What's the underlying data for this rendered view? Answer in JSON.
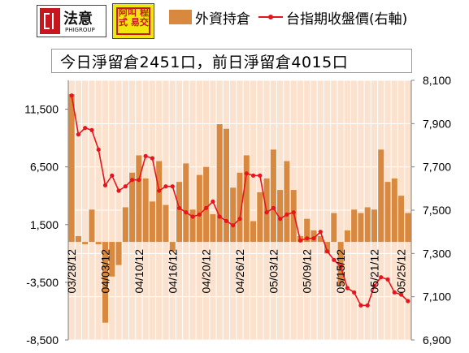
{
  "logos": {
    "primary": {
      "name": "法意",
      "sub": "PHIGROUP"
    },
    "secondary": {
      "text": "阿叫 程式 易交"
    }
  },
  "banner": {
    "text": "今日淨留倉2451口，前日淨留倉4015口"
  },
  "chart_data": {
    "type": "bar+line",
    "legend": {
      "bar_label": "外資持倉",
      "line_label": "台指期收盤價(右軸)",
      "placement": "top"
    },
    "colors": {
      "bar": "#d9893f",
      "line": "#e8141c",
      "plot_bg": "#fbe2cf",
      "grid": "#ffffff"
    },
    "x_tick_labels": [
      "03/28/12",
      "04/03/12",
      "04/10/12",
      "04/16/12",
      "04/20/12",
      "04/26/12",
      "05/03/12",
      "05/09/12",
      "05/15/12",
      "05/21/12",
      "05/25/12"
    ],
    "x_tick_index": [
      0,
      5,
      10,
      15,
      20,
      25,
      30,
      35,
      40,
      45,
      49
    ],
    "y_left": {
      "min": -8500,
      "max": 14000,
      "ticks": [
        -8500,
        -3500,
        1500,
        6500,
        11500
      ],
      "tick_labels": [
        "-8,500",
        "-3,500",
        "1,500",
        "6,500",
        "11,500"
      ]
    },
    "y_right": {
      "min": 6900,
      "max": 8100,
      "ticks": [
        6900,
        7100,
        7300,
        7500,
        7700,
        7900,
        8100
      ],
      "tick_labels": [
        "6,900",
        "7,100",
        "7,300",
        "7,500",
        "7,700",
        "7,900",
        "8,100"
      ]
    },
    "bars": [
      12800,
      500,
      -200,
      2800,
      -200,
      -7000,
      -3000,
      -2000,
      3000,
      6000,
      7500,
      5500,
      3500,
      7000,
      3200,
      -800,
      5200,
      6800,
      2800,
      5800,
      6500,
      2400,
      10200,
      9800,
      4700,
      6000,
      7500,
      1800,
      4300,
      5500,
      8000,
      4500,
      7000,
      4500,
      500,
      2000,
      1000,
      500,
      -1000,
      2500,
      -3800,
      1000,
      2800,
      2500,
      3000,
      2800,
      8000,
      5200,
      5500,
      4000,
      2500
    ],
    "line": [
      8030,
      7850,
      7880,
      7870,
      7780,
      7615,
      7660,
      7590,
      7610,
      7640,
      7640,
      7750,
      7740,
      7590,
      7610,
      7610,
      7510,
      7490,
      7470,
      7480,
      7510,
      7540,
      7470,
      7450,
      7430,
      7460,
      7670,
      7660,
      7660,
      7490,
      7510,
      7460,
      7480,
      7490,
      7360,
      7370,
      7370,
      7400,
      7310,
      7270,
      7240,
      7140,
      7120,
      7060,
      7060,
      7150,
      7190,
      7180,
      7120,
      7110,
      7080
    ]
  }
}
